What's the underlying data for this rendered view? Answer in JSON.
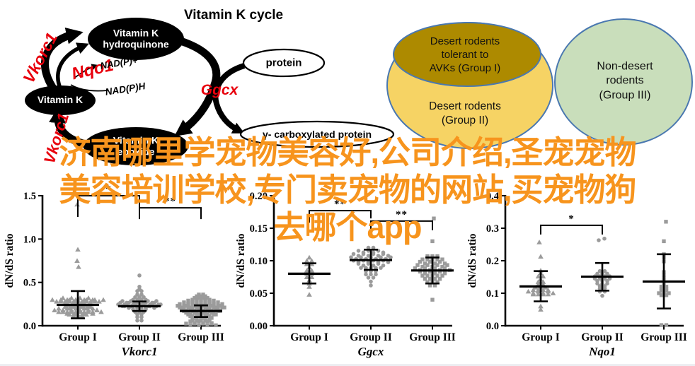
{
  "overlay": {
    "color": "#f7941d",
    "lines": [
      "济南哪里学宠物美容好,公司介绍,圣宠宠物",
      "美容培训学校,专门卖宠物的网站,买宠物狗",
      "去哪个app"
    ]
  },
  "cycle": {
    "title": "Vitamin K cycle",
    "nodes": {
      "hydroquinone": "Vitamin K\nhydroquinone",
      "vitamin_k": "Vitamin K",
      "epoxide": "Vitamin K\nepoxide",
      "protein": "protein",
      "gamma_protein": "γ- carboxylated protein"
    },
    "enzymes": {
      "vkorc1": "Vkorc1",
      "nqo1": "Nqo1",
      "ggcx": "Ggcx",
      "vkorc1_lower": "Vkorc1"
    },
    "cofactors": {
      "nadp_plus": "NAD(P)+",
      "nadph": "NAD(P)H"
    },
    "enzyme_color": "#e8000d",
    "node_fill": "#000000"
  },
  "venn": {
    "border_color": "#4a78b0",
    "group1": {
      "label": "Desert rodents\ntolerant to\nAVKs (Group I)",
      "fill": "#ad8a00"
    },
    "group2": {
      "label": "Desert rodents\n(Group II)",
      "fill": "#f6d364"
    },
    "group3": {
      "label": "Non-desert\nrodents\n(Group III)",
      "fill": "#c9debb"
    }
  },
  "chart_data": [
    {
      "type": "scatter",
      "subtype": "grouped-dot-plot",
      "gene": "Vkorc1",
      "ylabel": "dN/dS ratio",
      "ylim": [
        0,
        1.5
      ],
      "yticks": [
        0,
        0.5,
        1.0,
        1.5
      ],
      "ytick_labels": [
        "0.0",
        "0.5",
        "1.0",
        "1.5"
      ],
      "categories": [
        "Group I",
        "Group II",
        "Group III"
      ],
      "markers": [
        "triangle",
        "circle",
        "square"
      ],
      "point_color": "#9b9b9b",
      "spacing": 6,
      "groups": [
        {
          "name": "Group I",
          "mean": 0.24,
          "err_lo": 0.085,
          "err_hi": 0.4,
          "rows": [
            [
              0.31,
              8
            ],
            [
              0.29,
              13
            ],
            [
              0.27,
              9
            ],
            [
              0.25,
              6
            ],
            [
              0.23,
              6
            ],
            [
              0.21,
              7
            ],
            [
              0.19,
              10
            ],
            [
              0.17,
              12
            ],
            [
              0.15,
              8
            ],
            [
              0.13,
              5
            ],
            [
              0.11,
              3
            ]
          ],
          "outliers": [
            [
              -1,
              1.4
            ],
            [
              0,
              0.88
            ],
            [
              -1,
              0.75
            ],
            [
              1,
              0.68
            ]
          ]
        },
        {
          "name": "Group II",
          "mean": 0.225,
          "err_lo": 0.17,
          "err_hi": 0.28,
          "rows": [
            [
              0.58,
              1
            ],
            [
              0.45,
              1
            ],
            [
              0.42,
              1
            ],
            [
              0.4,
              2
            ],
            [
              0.36,
              2
            ],
            [
              0.33,
              3
            ],
            [
              0.3,
              4
            ],
            [
              0.275,
              9
            ],
            [
              0.255,
              10
            ],
            [
              0.235,
              11
            ],
            [
              0.215,
              8
            ],
            [
              0.19,
              4
            ],
            [
              0.16,
              3
            ],
            [
              0.13,
              2
            ],
            [
              0.1,
              2
            ],
            [
              0.06,
              2
            ]
          ],
          "outliers": []
        },
        {
          "name": "Group III",
          "mean": 0.17,
          "err_lo": 0.1,
          "err_hi": 0.235,
          "rows": [
            [
              0.36,
              2
            ],
            [
              0.34,
              3
            ],
            [
              0.32,
              4
            ],
            [
              0.3,
              5
            ],
            [
              0.28,
              7
            ],
            [
              0.26,
              9
            ],
            [
              0.24,
              11
            ],
            [
              0.22,
              12
            ],
            [
              0.2,
              11
            ],
            [
              0.18,
              10
            ],
            [
              0.16,
              9
            ],
            [
              0.14,
              8
            ],
            [
              0.12,
              7
            ],
            [
              0.1,
              6
            ],
            [
              0.08,
              5
            ],
            [
              0.06,
              5
            ],
            [
              0.04,
              6
            ],
            [
              0.015,
              8
            ]
          ],
          "outliers": []
        }
      ],
      "significance": [
        {
          "from": 0,
          "to": 1,
          "label": "*",
          "y": 1.5,
          "drops": [
            30,
            22
          ]
        },
        {
          "from": 1,
          "to": 2,
          "label": "**",
          "y": 1.36,
          "drops": [
            16,
            16
          ]
        }
      ]
    },
    {
      "type": "scatter",
      "subtype": "grouped-dot-plot",
      "gene": "Ggcx",
      "ylabel": "dN/dS ratio",
      "ylim": [
        0,
        0.2
      ],
      "yticks": [
        0,
        0.05,
        0.1,
        0.15,
        0.2
      ],
      "ytick_labels": [
        "0.00",
        "0.05",
        "0.10",
        "0.15",
        "0.20"
      ],
      "categories": [
        "Group I",
        "Group II",
        "Group III"
      ],
      "markers": [
        "triangle",
        "circle",
        "square"
      ],
      "point_color": "#9b9b9b",
      "spacing": 7,
      "groups": [
        {
          "name": "Group I",
          "mean": 0.08,
          "err_lo": 0.065,
          "err_hi": 0.096,
          "rows": [
            [
              0.105,
              1
            ],
            [
              0.1,
              2
            ],
            [
              0.095,
              2
            ],
            [
              0.09,
              1
            ],
            [
              0.085,
              2
            ],
            [
              0.08,
              2
            ],
            [
              0.075,
              2
            ],
            [
              0.07,
              1
            ],
            [
              0.065,
              1
            ],
            [
              0.06,
              1
            ],
            [
              0.048,
              1
            ]
          ],
          "outliers": []
        },
        {
          "name": "Group II",
          "mean": 0.101,
          "err_lo": 0.086,
          "err_hi": 0.117,
          "rows": [
            [
              0.12,
              2
            ],
            [
              0.114,
              6
            ],
            [
              0.109,
              8
            ],
            [
              0.104,
              9
            ],
            [
              0.099,
              8
            ],
            [
              0.094,
              6
            ],
            [
              0.089,
              5
            ],
            [
              0.084,
              3
            ],
            [
              0.079,
              3
            ],
            [
              0.074,
              2
            ],
            [
              0.068,
              1
            ],
            [
              0.062,
              1
            ]
          ],
          "outliers": []
        },
        {
          "name": "Group III",
          "mean": 0.085,
          "err_lo": 0.065,
          "err_hi": 0.105,
          "rows": [
            [
              0.13,
              1
            ],
            [
              0.107,
              3
            ],
            [
              0.102,
              5
            ],
            [
              0.097,
              6
            ],
            [
              0.092,
              7
            ],
            [
              0.087,
              8
            ],
            [
              0.082,
              6
            ],
            [
              0.077,
              5
            ],
            [
              0.072,
              4
            ],
            [
              0.067,
              3
            ],
            [
              0.062,
              2
            ],
            [
              0.04,
              1
            ]
          ],
          "outliers": [
            [
              2,
              0.165
            ]
          ]
        }
      ],
      "significance": [
        {
          "from": 0,
          "to": 1,
          "label": "**",
          "y": 0.177,
          "drops": [
            17,
            11
          ]
        },
        {
          "from": 1,
          "to": 2,
          "label": "**",
          "y": 0.161,
          "drops": [
            13,
            13
          ]
        }
      ]
    },
    {
      "type": "scatter",
      "subtype": "grouped-dot-plot",
      "gene": "Nqo1",
      "ylabel": "dN/dS ratio",
      "ylim": [
        0,
        0.4
      ],
      "yticks": [
        0,
        0.1,
        0.2,
        0.3,
        0.4
      ],
      "ytick_labels": [
        "0.0",
        "0.1",
        "0.2",
        "0.3",
        "0.4"
      ],
      "categories": [
        "Group I",
        "Group II",
        "Group III"
      ],
      "markers": [
        "triangle",
        "circle",
        "square"
      ],
      "point_color": "#9b9b9b",
      "spacing": 7,
      "groups": [
        {
          "name": "Group I",
          "mean": 0.121,
          "err_lo": 0.075,
          "err_hi": 0.168,
          "rows": [
            [
              0.17,
              1
            ],
            [
              0.162,
              1
            ],
            [
              0.152,
              2
            ],
            [
              0.143,
              1
            ],
            [
              0.135,
              2
            ],
            [
              0.127,
              2
            ],
            [
              0.118,
              3
            ],
            [
              0.11,
              4
            ],
            [
              0.103,
              6
            ],
            [
              0.097,
              4
            ],
            [
              0.06,
              1
            ],
            [
              0.05,
              1
            ]
          ],
          "outliers": [
            [
              -2,
              0.257
            ],
            [
              0,
              0.213
            ]
          ]
        },
        {
          "name": "Group II",
          "mean": 0.151,
          "err_lo": 0.108,
          "err_hi": 0.193,
          "rows": [
            [
              0.168,
              2
            ],
            [
              0.16,
              3
            ],
            [
              0.152,
              4
            ],
            [
              0.145,
              4
            ],
            [
              0.138,
              3
            ],
            [
              0.13,
              3
            ],
            [
              0.122,
              2
            ],
            [
              0.115,
              2
            ],
            [
              0.105,
              2
            ],
            [
              0.092,
              1
            ]
          ],
          "outliers": [
            [
              -5,
              0.263
            ],
            [
              3,
              0.268
            ]
          ]
        },
        {
          "name": "Group III",
          "mean": 0.136,
          "err_lo": 0.053,
          "err_hi": 0.22,
          "rows": [
            [
              0.22,
              1
            ],
            [
              0.21,
              1
            ],
            [
              0.198,
              1
            ],
            [
              0.165,
              1
            ],
            [
              0.155,
              1
            ],
            [
              0.148,
              1
            ],
            [
              0.14,
              1
            ],
            [
              0.13,
              1
            ],
            [
              0.12,
              2
            ],
            [
              0.113,
              2
            ],
            [
              0.107,
              2
            ],
            [
              0.1,
              3
            ],
            [
              0.094,
              2
            ],
            [
              0.002,
              2
            ]
          ],
          "outliers": [
            [
              3,
              0.32
            ],
            [
              0,
              0.26
            ]
          ]
        }
      ],
      "significance": [
        {
          "from": 0,
          "to": 1,
          "label": "*",
          "y": 0.309,
          "drops": [
            13,
            13
          ]
        }
      ]
    }
  ]
}
